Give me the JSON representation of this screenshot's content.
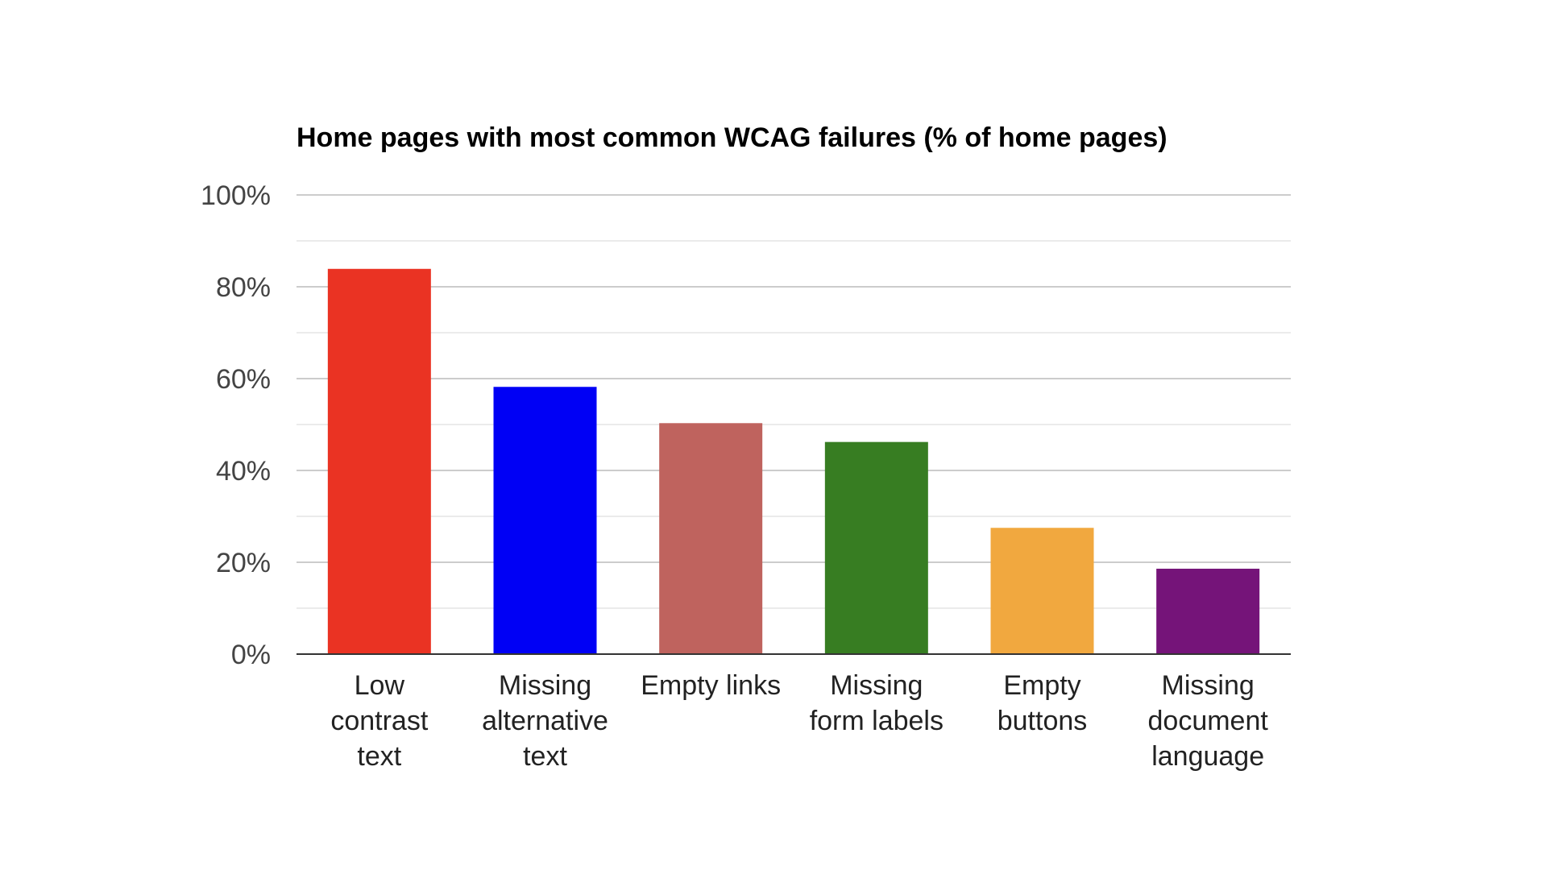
{
  "chart_data": {
    "type": "bar",
    "title": "Home pages with most common WCAG failures (% of home pages)",
    "xlabel": "",
    "ylabel": "",
    "ylim": [
      0,
      100
    ],
    "yticks": [
      0,
      20,
      40,
      60,
      80,
      100
    ],
    "ytick_labels": [
      "0%",
      "20%",
      "40%",
      "60%",
      "80%",
      "100%"
    ],
    "minor_gridlines": true,
    "grid": true,
    "legend": "none",
    "categories": [
      [
        "Low",
        "contrast",
        "text"
      ],
      [
        "Missing",
        "alternative",
        "text"
      ],
      [
        "Empty links"
      ],
      [
        "Missing",
        "form labels"
      ],
      [
        "Empty",
        "buttons"
      ],
      [
        "Missing",
        "document",
        "language"
      ]
    ],
    "values": [
      83.9,
      58.2,
      50.3,
      46.2,
      27.5,
      18.6
    ],
    "colors": [
      "#ea3323",
      "#0000f5",
      "#bf635e",
      "#377d22",
      "#f1a83f",
      "#751479"
    ]
  }
}
